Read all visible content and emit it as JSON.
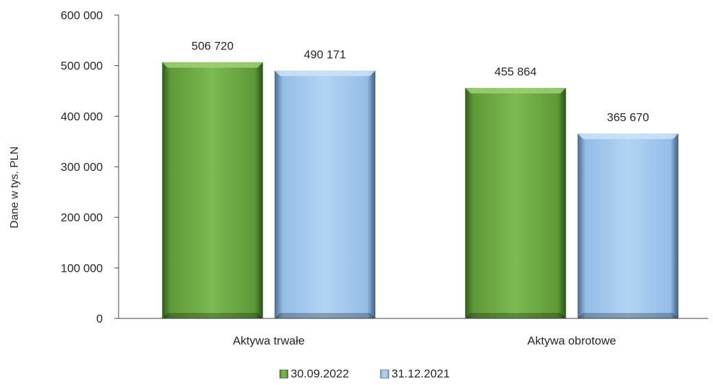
{
  "chart_data": {
    "type": "bar",
    "categories": [
      "Aktywa trwałe",
      "Aktywa obrotowe"
    ],
    "series": [
      {
        "name": "30.09.2022",
        "values": [
          506720,
          455864
        ],
        "color": "#77b24d",
        "label_text": [
          "506 720",
          "455 864"
        ]
      },
      {
        "name": "31.12.2021",
        "values": [
          490171,
          365670
        ],
        "color": "#a9cdf0",
        "label_text": [
          "490 171",
          "365 670"
        ]
      }
    ],
    "ylabel": "Dane w tys. PLN",
    "ylim": [
      0,
      600000
    ],
    "yticks": [
      0,
      100000,
      200000,
      300000,
      400000,
      500000,
      600000
    ],
    "ytick_labels": [
      "0",
      "100 000",
      "200 000",
      "300 000",
      "400 000",
      "500 000",
      "600 000"
    ],
    "grid": false,
    "legend_position": "bottom"
  }
}
